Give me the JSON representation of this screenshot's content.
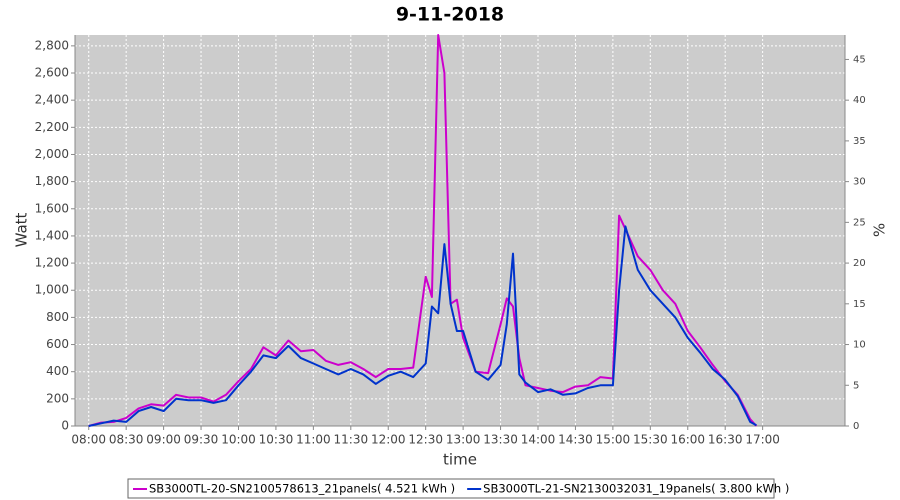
{
  "chart_data": {
    "type": "line",
    "title": "9-11-2018",
    "xlabel": "time",
    "ylabel": "Watt",
    "y2label": "%",
    "x": [
      480,
      490,
      500,
      510,
      520,
      530,
      540,
      550,
      560,
      570,
      580,
      590,
      600,
      610,
      620,
      630,
      640,
      650,
      660,
      670,
      680,
      690,
      700,
      710,
      720,
      730,
      740,
      750,
      755,
      760,
      765,
      770,
      775,
      780,
      790,
      800,
      810,
      815,
      820,
      825,
      830,
      840,
      850,
      860,
      870,
      880,
      890,
      900,
      905,
      910,
      920,
      930,
      940,
      950,
      960,
      970,
      980,
      990,
      1000,
      1010,
      1015
    ],
    "xlim": [
      469,
      1086
    ],
    "xticks": [
      {
        "value": 480,
        "label": "08:00"
      },
      {
        "value": 510,
        "label": "08:30"
      },
      {
        "value": 540,
        "label": "09:00"
      },
      {
        "value": 570,
        "label": "09:30"
      },
      {
        "value": 600,
        "label": "10:00"
      },
      {
        "value": 630,
        "label": "10:30"
      },
      {
        "value": 660,
        "label": "11:00"
      },
      {
        "value": 690,
        "label": "11:30"
      },
      {
        "value": 720,
        "label": "12:00"
      },
      {
        "value": 750,
        "label": "12:30"
      },
      {
        "value": 780,
        "label": "13:00"
      },
      {
        "value": 810,
        "label": "13:30"
      },
      {
        "value": 840,
        "label": "14:00"
      },
      {
        "value": 870,
        "label": "14:30"
      },
      {
        "value": 900,
        "label": "15:00"
      },
      {
        "value": 930,
        "label": "15:30"
      },
      {
        "value": 960,
        "label": "16:00"
      },
      {
        "value": 990,
        "label": "16:30"
      },
      {
        "value": 1020,
        "label": "17:00"
      }
    ],
    "ylim": [
      0,
      2880
    ],
    "yticks": [
      0,
      200,
      400,
      600,
      800,
      {
        "value": 1000,
        "label": "1,000"
      },
      {
        "value": 1200,
        "label": "1,200"
      },
      {
        "value": 1400,
        "label": "1,400"
      },
      {
        "value": 1600,
        "label": "1,600"
      },
      {
        "value": 1800,
        "label": "1,800"
      },
      {
        "value": 2000,
        "label": "2,000"
      },
      {
        "value": 2200,
        "label": "2,200"
      },
      {
        "value": 2400,
        "label": "2,400"
      },
      {
        "value": 2600,
        "label": "2,600"
      },
      {
        "value": 2800,
        "label": "2,800"
      }
    ],
    "y2lim": [
      0,
      48
    ],
    "y2ticks": [
      0,
      5,
      10,
      15,
      20,
      25,
      30,
      35,
      40,
      45
    ],
    "grid": true,
    "series": [
      {
        "name": "SB3000TL-20-SN2100578613_21panels( 4.521 kWh )",
        "color": "#cc00cc",
        "values": [
          0,
          25,
          30,
          60,
          130,
          160,
          150,
          230,
          210,
          210,
          180,
          230,
          330,
          420,
          580,
          520,
          630,
          550,
          560,
          480,
          450,
          470,
          420,
          360,
          420,
          420,
          430,
          1100,
          950,
          2880,
          2600,
          900,
          930,
          650,
          400,
          390,
          750,
          940,
          880,
          500,
          300,
          280,
          260,
          250,
          290,
          300,
          360,
          350,
          1550,
          1450,
          1250,
          1150,
          1000,
          900,
          700,
          580,
          450,
          330,
          230,
          50,
          0
        ]
      },
      {
        "name": "SB3000TL-21-SN2130032031_19panels( 3.800 kWh )",
        "color": "#0033cc",
        "values": [
          0,
          20,
          40,
          30,
          110,
          140,
          110,
          200,
          190,
          190,
          170,
          190,
          300,
          400,
          520,
          500,
          590,
          500,
          460,
          420,
          380,
          420,
          380,
          310,
          370,
          400,
          360,
          460,
          880,
          830,
          1340,
          900,
          700,
          700,
          400,
          340,
          450,
          750,
          1270,
          380,
          320,
          250,
          270,
          230,
          240,
          280,
          300,
          300,
          1000,
          1470,
          1150,
          1000,
          900,
          800,
          650,
          540,
          420,
          340,
          220,
          30,
          5
        ]
      }
    ]
  }
}
